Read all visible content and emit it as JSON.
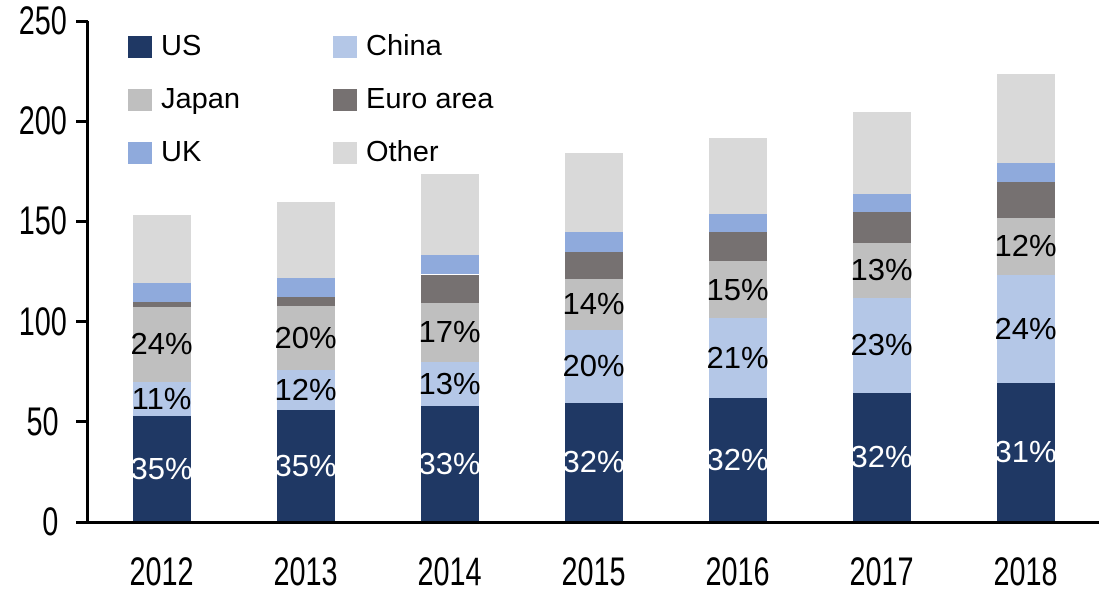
{
  "chart_data": {
    "type": "bar",
    "stacked": true,
    "title": "",
    "xlabel": "",
    "ylabel": "",
    "categories": [
      "2012",
      "2013",
      "2014",
      "2015",
      "2016",
      "2017",
      "2018"
    ],
    "series": [
      {
        "name": "US",
        "color": "#1f3864",
        "label_color": "#ffffff",
        "values": [
          53,
          56,
          58,
          59.5,
          62,
          64.5,
          69.5
        ],
        "labels": [
          "35%",
          "35%",
          "33%",
          "32%",
          "32%",
          "32%",
          "31%"
        ]
      },
      {
        "name": "China",
        "color": "#b4c7e7",
        "label_color": "#000000",
        "values": [
          17,
          20,
          22,
          36.5,
          40,
          47.5,
          54
        ],
        "labels": [
          "11%",
          "12%",
          "13%",
          "20%",
          "21%",
          "23%",
          "24%"
        ]
      },
      {
        "name": "Japan",
        "color": "#bfbfbf",
        "label_color": "#000000",
        "values": [
          37.5,
          32,
          29.5,
          25.5,
          28,
          27,
          28
        ],
        "labels": [
          "24%",
          "20%",
          "17%",
          "14%",
          "15%",
          "13%",
          "12%"
        ]
      },
      {
        "name": "Euro area",
        "color": "#767171",
        "label_color": "#000000",
        "values": [
          2.5,
          4.5,
          14,
          13,
          14.5,
          15.5,
          18
        ],
        "labels": [
          "",
          "",
          "",
          "",
          "",
          "",
          ""
        ]
      },
      {
        "name": "UK",
        "color": "#8faadc",
        "label_color": "#000000",
        "values": [
          9.5,
          9.5,
          9.5,
          10,
          9,
          9,
          9.5
        ],
        "labels": [
          "",
          "",
          "",
          "",
          "",
          "",
          ""
        ]
      },
      {
        "name": "Other",
        "color": "#d9d9d9",
        "label_color": "#000000",
        "values": [
          33.5,
          37.5,
          40.5,
          39.5,
          38,
          41,
          44.5
        ],
        "labels": [
          "",
          "",
          "",
          "",
          "",
          "",
          ""
        ]
      }
    ],
    "totals": [
      153,
      159.5,
      173.5,
      184,
      191.5,
      204.5,
      223.5
    ],
    "yticks": [
      "0",
      "50",
      "100",
      "150",
      "200",
      "250"
    ],
    "ytick_values": [
      0,
      50,
      100,
      150,
      200,
      250
    ],
    "ylim": [
      0,
      250
    ],
    "grid": false,
    "legend_position": "top-left",
    "axis_color": "#000000",
    "background_color": "#ffffff"
  }
}
